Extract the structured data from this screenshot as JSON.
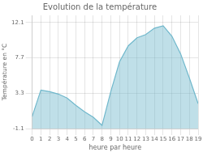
{
  "chart_data": {
    "type": "area",
    "title": "Evolution de la température",
    "xlabel": "heure par heure",
    "ylabel": "Température en °C",
    "x": [
      0,
      1,
      2,
      3,
      4,
      5,
      6,
      7,
      8,
      9,
      10,
      11,
      12,
      13,
      14,
      15,
      16,
      17,
      18,
      19
    ],
    "values": [
      0.4,
      3.7,
      3.5,
      3.2,
      2.7,
      1.8,
      1.0,
      0.3,
      -0.7,
      3.5,
      7.2,
      9.2,
      10.2,
      10.6,
      11.4,
      11.7,
      10.4,
      8.2,
      5.2,
      2.0
    ],
    "color": "#70b8cc",
    "xlim": [
      0,
      19
    ],
    "ylim": [
      -1.1,
      13.0
    ],
    "xticks": [
      0,
      1,
      2,
      3,
      4,
      5,
      6,
      7,
      8,
      9,
      10,
      11,
      12,
      13,
      14,
      15,
      16,
      17,
      18,
      19
    ],
    "yticks": [
      -1.1,
      3.3,
      7.7,
      12.1
    ],
    "grid": true
  }
}
